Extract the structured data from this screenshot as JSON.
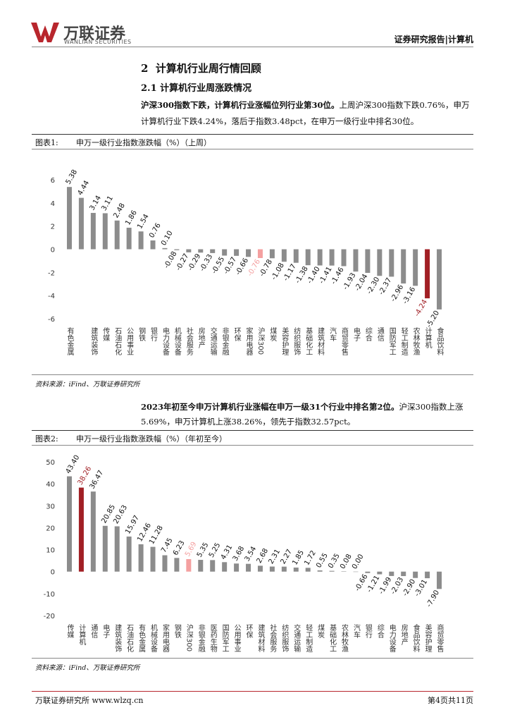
{
  "header": {
    "brand": "万联证券",
    "brand_en": "WANLIAN SECURITIES",
    "report": "证券研究报告|计算机"
  },
  "section": {
    "title": "2  计算机行业周行情回顾",
    "subtitle": "2.1 计算机行业周涨跌情况"
  },
  "paragraphs": [
    {
      "bold": "沪深300指数下跌，计算机行业涨幅位列行业第30位。",
      "text": "上周沪深300指数下跌0.76%，申万计算机行业下跌4.24%，落后于指数3.48pct，在申万一级行业中排名30位。"
    },
    {
      "bold": "2023年初至今申万计算机行业涨幅在申万一级31个行业中排名第2位。",
      "text": "沪深300指数上涨5.69%，申万计算机上涨38.26%，领先于指数32.57pct。"
    }
  ],
  "figures": [
    {
      "label": "图表1:",
      "source": "资料来源：iFind、万联证券研究所"
    },
    {
      "label": "图表2:",
      "source": "资料来源：iFind、万联证券研究所"
    }
  ],
  "footer": {
    "left": "万联证券研究所 www.wlzq.cn",
    "right": "第4页共11页"
  },
  "chart_data": [
    {
      "type": "bar",
      "title": "申万一级行业指数涨跌幅（%）（上周）",
      "categories": [
        "有色金属",
        null,
        "建筑装饰",
        "传媒",
        "石油石化",
        "公用事业",
        "钢铁",
        "银行",
        "电力设备",
        "机械设备",
        "社会服务",
        "房地产",
        "交通运输",
        "非银金融",
        "环保",
        "家用电器",
        "沪深300",
        "煤炭",
        "美容护理",
        "纺织服饰",
        "基础化工",
        "建筑材料",
        "汽车",
        "商贸零售",
        "电子",
        "综合",
        "通信",
        "国防军工",
        "轻工制造",
        "农林牧渔",
        "计算机",
        "食品饮料"
      ],
      "values": [
        5.38,
        4.44,
        3.14,
        3.11,
        2.48,
        1.86,
        1.54,
        0.76,
        0.1,
        -0.08,
        -0.27,
        -0.29,
        -0.33,
        -0.55,
        -0.57,
        -0.66,
        -0.76,
        -0.78,
        -1.08,
        -1.17,
        -1.38,
        -1.4,
        -1.41,
        -1.46,
        -1.93,
        -2.04,
        -2.3,
        -2.37,
        -2.96,
        -3.16,
        -4.24,
        -5.2
      ],
      "value_labels": [
        "5.38",
        "4.44",
        "3.14",
        "3.11",
        "2.48",
        "1.86",
        "1.54",
        "0.76",
        "0.10",
        "-0.08",
        "-0.27",
        "-0.29",
        "-0.33",
        "-0.55",
        "-0.57",
        "-0.66",
        "-0.76",
        "-0.78",
        "-1.08",
        "-1.17",
        "-1.38",
        "-1.40",
        "-1.41",
        "-1.46",
        "-1.93",
        "-2.04",
        "-2.30",
        "-2.37",
        "-2.96",
        "-3.16",
        "-4.24",
        "-5.20"
      ],
      "color": "#8c8c8c",
      "colors": [
        "#8c8c8c",
        "#8c8c8c",
        "#8c8c8c",
        "#8c8c8c",
        "#8c8c8c",
        "#8c8c8c",
        "#8c8c8c",
        "#8c8c8c",
        "#8c8c8c",
        "#8c8c8c",
        "#8c8c8c",
        "#8c8c8c",
        "#8c8c8c",
        "#8c8c8c",
        "#8c8c8c",
        "#8c8c8c",
        "#f4a0a0",
        "#8c8c8c",
        "#8c8c8c",
        "#8c8c8c",
        "#8c8c8c",
        "#8c8c8c",
        "#8c8c8c",
        "#8c8c8c",
        "#8c8c8c",
        "#8c8c8c",
        "#8c8c8c",
        "#8c8c8c",
        "#8c8c8c",
        "#8c8c8c",
        "#a11f24",
        "#8c8c8c"
      ],
      "ylim": [
        -6,
        6
      ],
      "yticks": [
        -6,
        -4,
        -2,
        0,
        2,
        4,
        6
      ],
      "grid": false
    },
    {
      "type": "bar",
      "title": "申万一级行业指数涨跌幅（%）（年初至今）",
      "categories": [
        "传媒",
        "计算机",
        "通信",
        "电子",
        "建筑装饰",
        "石油石化",
        "有色金属",
        "机械设备",
        "家用电器",
        "钢铁",
        "沪深300",
        "非银金融",
        "医药生物",
        "国防军工",
        "公用事业",
        "环保",
        "建筑材料",
        "社会服务",
        "纺织服饰",
        "交通运输",
        "轻工制造",
        "煤炭",
        "基础化工",
        "农林牧渔",
        "汽车",
        "银行",
        "综合",
        "电力设备",
        "房地产",
        "食品饮料",
        "美容护理",
        "商贸零售"
      ],
      "values": [
        43.4,
        38.26,
        36.47,
        20.85,
        20.63,
        15.97,
        12.46,
        11.28,
        7.45,
        6.23,
        5.69,
        5.35,
        5.25,
        4.31,
        3.68,
        3.54,
        2.68,
        2.31,
        2.27,
        1.85,
        1.72,
        0.55,
        0.35,
        0.08,
        0.0,
        -0.66,
        -1.21,
        -1.99,
        -2.03,
        -2.9,
        -3.01,
        -7.9
      ],
      "value_labels": [
        "43.40",
        "38.26",
        "36.47",
        "20.85",
        "20.63",
        "15.97",
        "12.46",
        "11.28",
        "7.45",
        "6.23",
        "5.69",
        "5.35",
        "5.25",
        "4.31",
        "3.68",
        "3.54",
        "2.68",
        "2.31",
        "2.27",
        "1.85",
        "1.72",
        "0.55",
        "0.35",
        "0.08",
        "0.00",
        "-0.66",
        "-1.21",
        "-1.99",
        "-2.03",
        "-2.90",
        "-3.01",
        "-7.90"
      ],
      "color": "#8c8c8c",
      "colors": [
        "#8c8c8c",
        "#a11f24",
        "#8c8c8c",
        "#8c8c8c",
        "#8c8c8c",
        "#8c8c8c",
        "#8c8c8c",
        "#8c8c8c",
        "#8c8c8c",
        "#8c8c8c",
        "#f4a0a0",
        "#8c8c8c",
        "#8c8c8c",
        "#8c8c8c",
        "#8c8c8c",
        "#8c8c8c",
        "#8c8c8c",
        "#8c8c8c",
        "#8c8c8c",
        "#8c8c8c",
        "#8c8c8c",
        "#8c8c8c",
        "#8c8c8c",
        "#8c8c8c",
        "#8c8c8c",
        "#8c8c8c",
        "#8c8c8c",
        "#8c8c8c",
        "#8c8c8c",
        "#8c8c8c",
        "#8c8c8c",
        "#8c8c8c"
      ],
      "ylim": [
        -20,
        50
      ],
      "yticks": [
        -20,
        -10,
        0,
        10,
        20,
        30,
        40,
        50
      ],
      "grid": false
    }
  ]
}
